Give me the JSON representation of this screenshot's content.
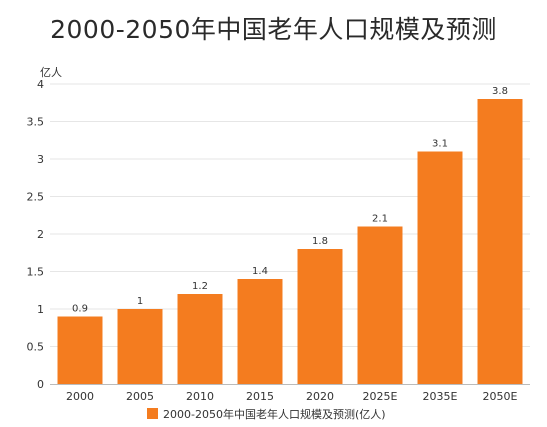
{
  "chart_data": {
    "type": "bar",
    "title": "2000-2050年中国老年人口规模及预测",
    "ylabel": "亿人",
    "categories": [
      "2000",
      "2005",
      "2010",
      "2015",
      "2020",
      "2025E",
      "2035E",
      "2050E"
    ],
    "series": [
      {
        "name": "2000-2050年中国老年人口规模及预测(亿人)",
        "values": [
          0.9,
          1,
          1.2,
          1.4,
          1.8,
          2.1,
          3.1,
          3.8
        ],
        "data_labels": [
          "0.9",
          "1",
          "1.2",
          "1.4",
          "1.8",
          "2.1",
          "3.1",
          "3.8"
        ]
      }
    ],
    "ylim": [
      0,
      4
    ],
    "yticks": [
      "0",
      "0.5",
      "1",
      "1.5",
      "2",
      "2.5",
      "3",
      "3.5",
      "4"
    ],
    "grid": true,
    "legend": "bottom",
    "colors": {
      "bar": "#f47c1f",
      "grid": "#e6e6e6",
      "axis": "#bbbbbb"
    }
  }
}
